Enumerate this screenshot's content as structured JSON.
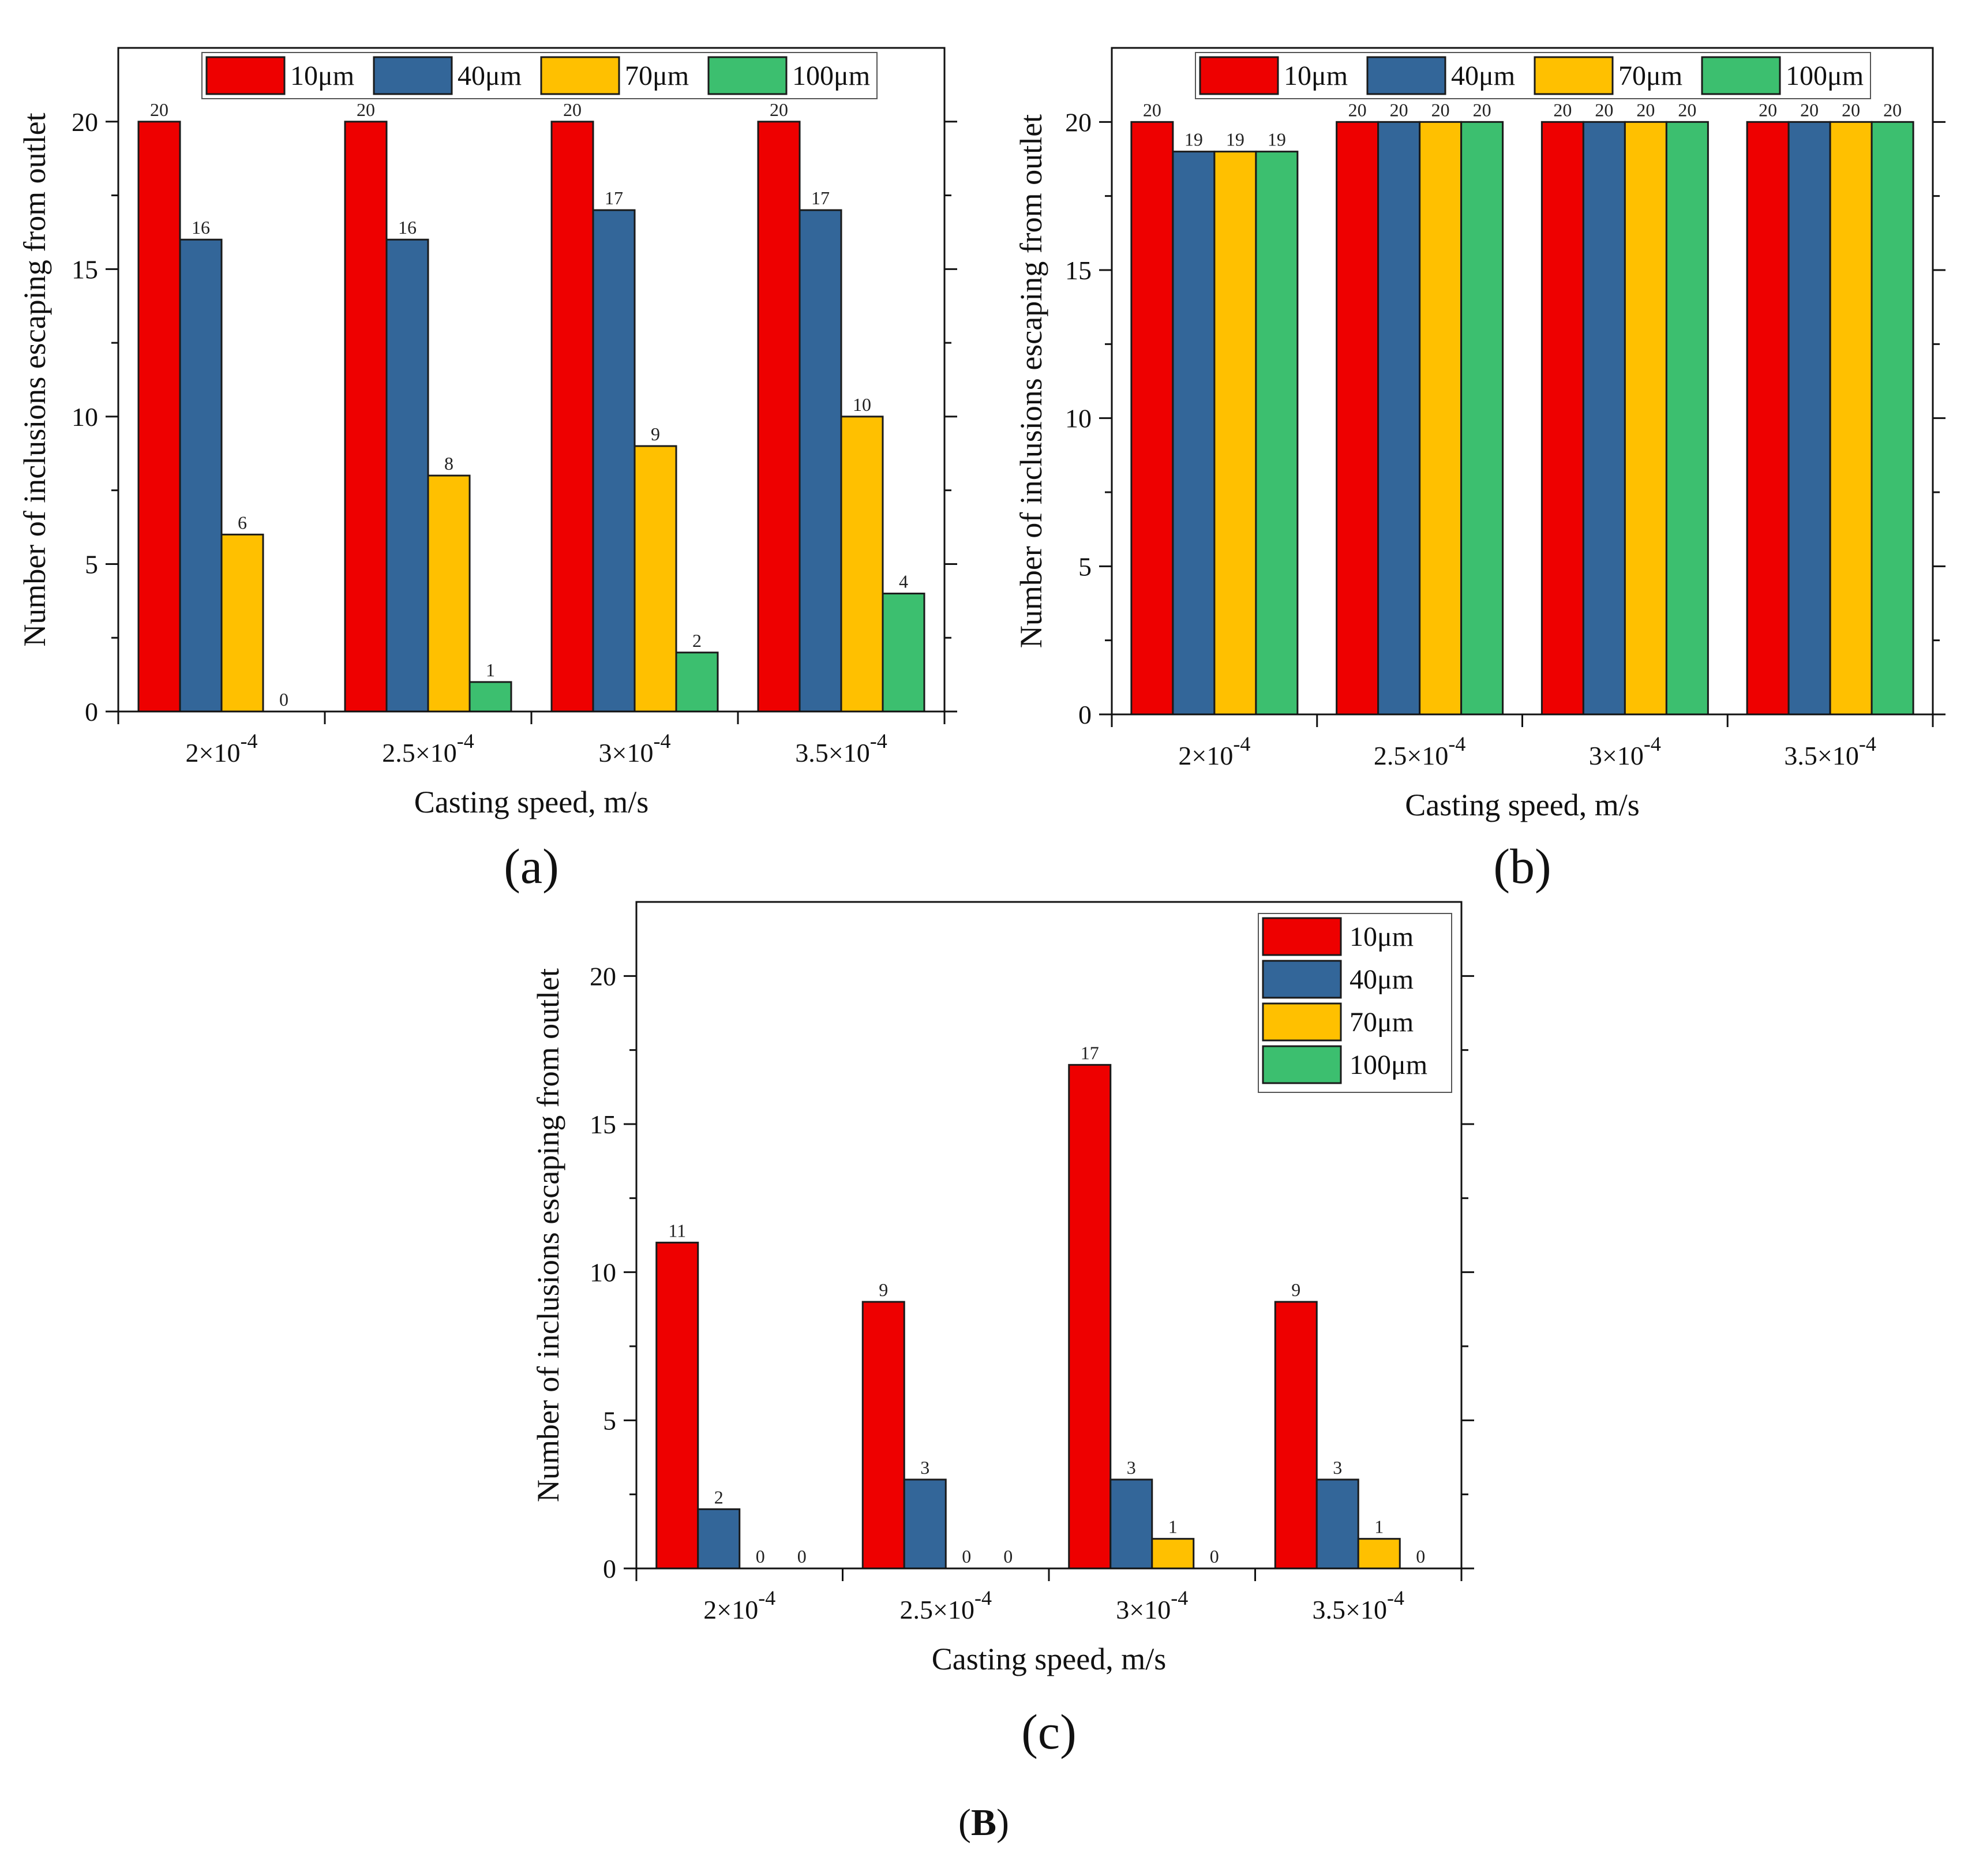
{
  "colors": {
    "10um": "#ee0000",
    "40um": "#336699",
    "70um": "#ffc000",
    "100um": "#3cbf6f"
  },
  "figure_label": {
    "open": "(",
    "letter": "B",
    "close": ")"
  },
  "chart_data": [
    {
      "type": "bar",
      "panel_label": "(a)",
      "categories": [
        "2×10",
        "2.5×10",
        "3×10",
        "3.5×10"
      ],
      "category_exponent": "-4",
      "xlabel": "Casting speed, m/s",
      "ylabel": "Number of inclusions escaping from outlet",
      "ylim": [
        0,
        22.5
      ],
      "yticks": [
        "0",
        "5",
        "10",
        "15",
        "20"
      ],
      "legend_position": "top",
      "series": [
        {
          "name": "10μm",
          "color_key": "10um",
          "values": [
            20,
            20,
            20,
            20
          ]
        },
        {
          "name": "40μm",
          "color_key": "40um",
          "values": [
            16,
            16,
            17,
            17
          ]
        },
        {
          "name": "70μm",
          "color_key": "70um",
          "values": [
            6,
            8,
            9,
            10
          ]
        },
        {
          "name": "100μm",
          "color_key": "100um",
          "values": [
            0,
            1,
            2,
            4
          ]
        }
      ]
    },
    {
      "type": "bar",
      "panel_label": "(b)",
      "categories": [
        "2×10",
        "2.5×10",
        "3×10",
        "3.5×10"
      ],
      "category_exponent": "-4",
      "xlabel": "Casting speed, m/s",
      "ylabel": "Number of inclusions escaping from outlet",
      "ylim": [
        0,
        22.5
      ],
      "yticks": [
        "0",
        "5",
        "10",
        "15",
        "20"
      ],
      "legend_position": "top",
      "series": [
        {
          "name": "10μm",
          "color_key": "10um",
          "values": [
            20,
            20,
            20,
            20
          ]
        },
        {
          "name": "40μm",
          "color_key": "40um",
          "values": [
            19,
            20,
            20,
            20
          ]
        },
        {
          "name": "70μm",
          "color_key": "70um",
          "values": [
            19,
            20,
            20,
            20
          ]
        },
        {
          "name": "100μm",
          "color_key": "100um",
          "values": [
            19,
            20,
            20,
            20
          ]
        }
      ]
    },
    {
      "type": "bar",
      "panel_label": "(c)",
      "categories": [
        "2×10",
        "2.5×10",
        "3×10",
        "3.5×10"
      ],
      "category_exponent": "-4",
      "xlabel": "Casting speed, m/s",
      "ylabel": "Number of inclusions escaping from outlet",
      "ylim": [
        0,
        22.5
      ],
      "yticks": [
        "0",
        "5",
        "10",
        "15",
        "20"
      ],
      "legend_position": "top-right",
      "series": [
        {
          "name": "10μm",
          "color_key": "10um",
          "values": [
            11,
            9,
            17,
            9
          ]
        },
        {
          "name": "40μm",
          "color_key": "40um",
          "values": [
            2,
            3,
            3,
            3
          ]
        },
        {
          "name": "70μm",
          "color_key": "70um",
          "values": [
            0,
            0,
            1,
            1
          ]
        },
        {
          "name": "100μm",
          "color_key": "100um",
          "values": [
            0,
            0,
            0,
            0
          ]
        }
      ]
    }
  ]
}
